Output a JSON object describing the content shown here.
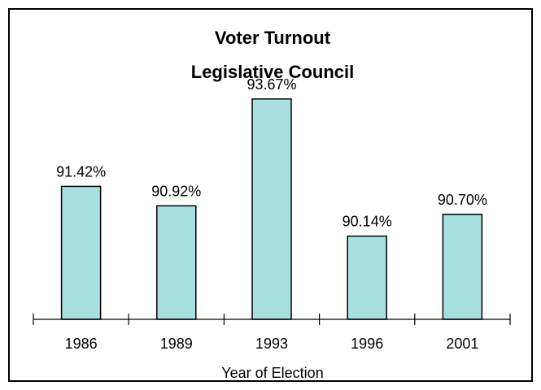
{
  "chart_data": {
    "type": "bar",
    "title_lines": [
      "Voter Turnout",
      "Legislative Council"
    ],
    "categories": [
      "1986",
      "1989",
      "1993",
      "1996",
      "2001"
    ],
    "values": [
      91.42,
      90.92,
      93.67,
      90.14,
      90.7
    ],
    "data_labels": [
      "91.42%",
      "90.92%",
      "93.67%",
      "90.14%",
      "90.70%"
    ],
    "xlabel": "Year of Election",
    "ylabel": "",
    "ylim": [
      88,
      94
    ],
    "grid": false,
    "legend": "none",
    "bar_color": "#a8e0e0",
    "bar_border_color": "#000000"
  }
}
